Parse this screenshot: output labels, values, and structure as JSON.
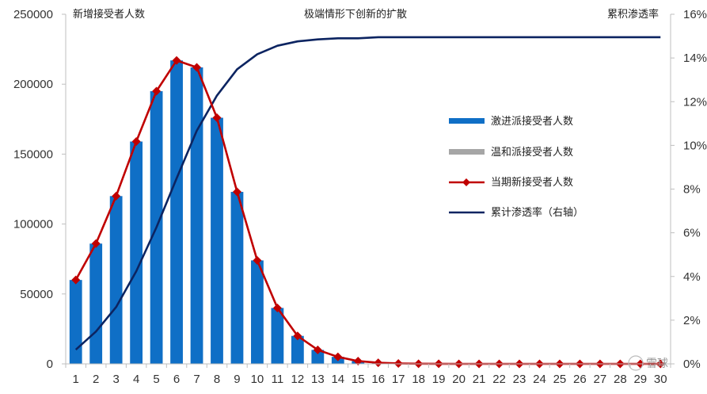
{
  "chart_data": {
    "type": "bar",
    "title": "极端情形下创新的扩散",
    "left_axis_label": "新增接受者人数",
    "right_axis_label": "累积渗透率",
    "categories": [
      "1",
      "2",
      "3",
      "4",
      "5",
      "6",
      "7",
      "8",
      "9",
      "10",
      "11",
      "12",
      "13",
      "14",
      "15",
      "16",
      "17",
      "18",
      "19",
      "20",
      "21",
      "22",
      "23",
      "24",
      "25",
      "26",
      "27",
      "28",
      "29",
      "30"
    ],
    "y_left_ticks": [
      "0",
      "50000",
      "100000",
      "150000",
      "200000",
      "250000"
    ],
    "y_right_ticks": [
      "0%",
      "2%",
      "4%",
      "6%",
      "8%",
      "10%",
      "12%",
      "14%",
      "16%"
    ],
    "ylim_left": [
      0,
      250000
    ],
    "ylim_right": [
      0,
      0.16
    ],
    "legend_position": "right-center",
    "series": [
      {
        "name": "激进派接受者人数",
        "type": "bar",
        "axis": "left",
        "color": "#0f6fc6",
        "values": [
          60000,
          86000,
          120000,
          159000,
          195000,
          217000,
          212000,
          176000,
          123000,
          74000,
          40000,
          20000,
          10000,
          5000,
          2000,
          800,
          300,
          100,
          50,
          0,
          0,
          0,
          0,
          0,
          0,
          0,
          0,
          0,
          0,
          0
        ]
      },
      {
        "name": "温和派接受者人数",
        "type": "bar",
        "axis": "left",
        "color": "#a6a6a6",
        "values": [
          0,
          0,
          0,
          0,
          0,
          0,
          0,
          0,
          0,
          0,
          0,
          0,
          0,
          0,
          0,
          0,
          0,
          0,
          0,
          0,
          0,
          0,
          0,
          0,
          0,
          0,
          0,
          0,
          0,
          0
        ]
      },
      {
        "name": "当期新接受者人数",
        "type": "line",
        "axis": "left",
        "color": "#c00000",
        "marker": "diamond",
        "values": [
          60000,
          86000,
          120000,
          159000,
          195000,
          217000,
          212000,
          176000,
          123000,
          74000,
          40000,
          20000,
          10000,
          5000,
          2000,
          800,
          300,
          100,
          50,
          0,
          0,
          0,
          0,
          0,
          0,
          0,
          0,
          0,
          0,
          0
        ]
      },
      {
        "name": "累计渗透率（右轴）",
        "type": "line",
        "axis": "right",
        "color": "#0c2461",
        "values": [
          0.0065,
          0.0148,
          0.026,
          0.0424,
          0.0625,
          0.0849,
          0.1067,
          0.1228,
          0.1348,
          0.1417,
          0.1456,
          0.1476,
          0.1485,
          0.149,
          0.149,
          0.1495,
          0.1495,
          0.1495,
          0.1495,
          0.1495,
          0.1495,
          0.1495,
          0.1495,
          0.1495,
          0.1495,
          0.1495,
          0.1495,
          0.1495,
          0.1495,
          0.1495
        ]
      }
    ]
  },
  "watermark": "雪球"
}
